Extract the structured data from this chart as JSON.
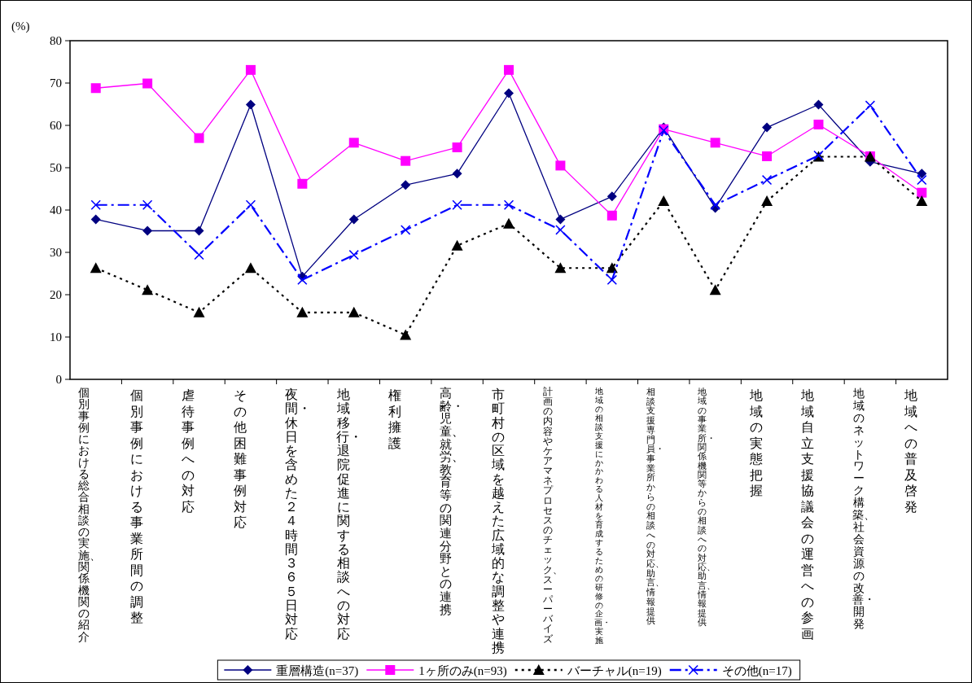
{
  "chart_data": {
    "type": "line",
    "ylabel": "(%)",
    "categories": [
      "個別事例における総合相談の実施、関係機関の紹介",
      "個別事例における事業所間の調整",
      "虐待事例への対応",
      "その他困難事例対応",
      "夜間・休日を含めた２４時間３６５日対応",
      "地域移行・退院促進に関する相談への対応",
      "権利擁護",
      "高齢・児童、就労、教育等の関連分野との連携",
      "市町村の区域を越えた広域的な調整や連携",
      "計画の内容やケアマネプロセスのチェック、スーパーバイズ",
      "地域の相談支援にかかわる人材を育成するための研修の企画・実施",
      "相談支援専門員・事業所からの相談への対応、助言、情報提供",
      "地域の事業所・関係機関等からの相談への対応、助言、情報提供",
      "地域の実態把握",
      "地域自立支援協議会の運営への参画",
      "地域のネットワーク構築、社会資源の改善・開発",
      "地域への普及啓発"
    ],
    "series": [
      {
        "name": "重層構造(n=37)",
        "color": "#000080",
        "marker": "diamond",
        "line_style": "solid",
        "values": [
          37.8,
          35.1,
          35.1,
          64.9,
          24.3,
          37.8,
          45.9,
          48.6,
          67.6,
          37.8,
          43.2,
          59.5,
          40.5,
          59.5,
          64.9,
          51.4,
          48.6
        ]
      },
      {
        "name": "1ヶ所のみ(n=93)",
        "color": "#ff00ff",
        "marker": "square",
        "line_style": "solid",
        "values": [
          68.8,
          69.9,
          57.0,
          73.1,
          46.2,
          55.9,
          51.6,
          54.8,
          73.1,
          50.5,
          38.7,
          59.1,
          55.9,
          52.7,
          60.2,
          52.7,
          44.1
        ]
      },
      {
        "name": "バーチャル(n=19)",
        "color": "#000000",
        "marker": "triangle",
        "line_style": "dotted",
        "values": [
          26.3,
          21.1,
          15.8,
          26.3,
          15.8,
          15.8,
          10.5,
          31.6,
          36.8,
          26.3,
          26.3,
          42.1,
          21.1,
          42.1,
          52.6,
          52.6,
          42.1
        ]
      },
      {
        "name": "その他(n=17)",
        "color": "#0000ff",
        "marker": "cross",
        "line_style": "dashed",
        "values": [
          41.2,
          41.2,
          29.4,
          41.2,
          23.5,
          29.4,
          35.3,
          41.2,
          41.2,
          35.3,
          23.5,
          58.8,
          41.2,
          47.1,
          52.9,
          64.7,
          47.1
        ]
      }
    ],
    "ylim": [
      0,
      80
    ],
    "yticks": [
      0,
      10,
      20,
      30,
      40,
      50,
      60,
      70,
      80
    ],
    "legend": "bottom"
  }
}
